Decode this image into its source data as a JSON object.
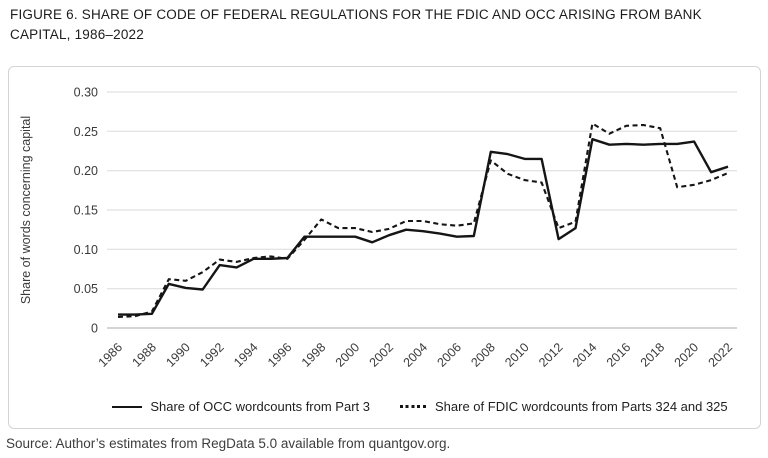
{
  "figure": {
    "title_line1": "FIGURE 6. SHARE OF CODE OF FEDERAL REGULATIONS FOR THE FDIC AND OCC ARISING FROM BANK",
    "title_line2": "CAPITAL, 1986–2022",
    "source": "Source: Author’s estimates from RegData 5.0 available from quantgov.org."
  },
  "colors": {
    "line": "#151515",
    "grid": "#dadada",
    "axis": "#ababab",
    "text": "#3a3a3a",
    "title": "#1c1c1c"
  },
  "chart_data": {
    "type": "line",
    "title": "FIGURE 6. SHARE OF CODE OF FEDERAL REGULATIONS FOR THE FDIC AND OCC ARISING FROM BANK CAPITAL, 1986–2022",
    "xlabel": "",
    "ylabel": "Share of words concerning capital",
    "ylim": [
      0,
      0.3
    ],
    "grid": "horizontal",
    "legend_position": "bottom",
    "yticks": [
      0,
      0.05,
      0.1,
      0.15,
      0.2,
      0.25,
      0.3
    ],
    "ytick_labels": [
      "0",
      "0.05",
      "0.10",
      "0.15",
      "0.20",
      "0.25",
      "0.30"
    ],
    "x": [
      1986,
      1987,
      1988,
      1989,
      1990,
      1991,
      1992,
      1993,
      1994,
      1995,
      1996,
      1997,
      1998,
      1999,
      2000,
      2001,
      2002,
      2003,
      2004,
      2005,
      2006,
      2007,
      2008,
      2009,
      2010,
      2011,
      2012,
      2013,
      2014,
      2015,
      2016,
      2017,
      2018,
      2019,
      2020,
      2021,
      2022
    ],
    "xtick_labels": [
      "1986",
      "1988",
      "1990",
      "1992",
      "1994",
      "1996",
      "1998",
      "2000",
      "2002",
      "2004",
      "2006",
      "2008",
      "2010",
      "2012",
      "2014",
      "2016",
      "2018",
      "2020",
      "2022"
    ],
    "series": [
      {
        "name": "Share of OCC wordcounts from Part 3",
        "style": "solid",
        "values": [
          0.017,
          0.017,
          0.018,
          0.056,
          0.051,
          0.049,
          0.08,
          0.077,
          0.088,
          0.088,
          0.089,
          0.116,
          0.116,
          0.116,
          0.116,
          0.109,
          0.118,
          0.125,
          0.123,
          0.12,
          0.116,
          0.117,
          0.224,
          0.221,
          0.215,
          0.215,
          0.113,
          0.127,
          0.24,
          0.233,
          0.234,
          0.233,
          0.234,
          0.234,
          0.237,
          0.198,
          0.205
        ]
      },
      {
        "name": "Share of FDIC wordcounts from Parts 324 and 325",
        "style": "dashed",
        "values": [
          0.014,
          0.015,
          0.021,
          0.062,
          0.06,
          0.071,
          0.087,
          0.084,
          0.089,
          0.091,
          0.088,
          0.112,
          0.138,
          0.127,
          0.127,
          0.122,
          0.126,
          0.136,
          0.136,
          0.132,
          0.13,
          0.133,
          0.213,
          0.196,
          0.188,
          0.185,
          0.127,
          0.135,
          0.26,
          0.247,
          0.257,
          0.258,
          0.254,
          0.179,
          0.182,
          0.188,
          0.197
        ]
      }
    ]
  }
}
